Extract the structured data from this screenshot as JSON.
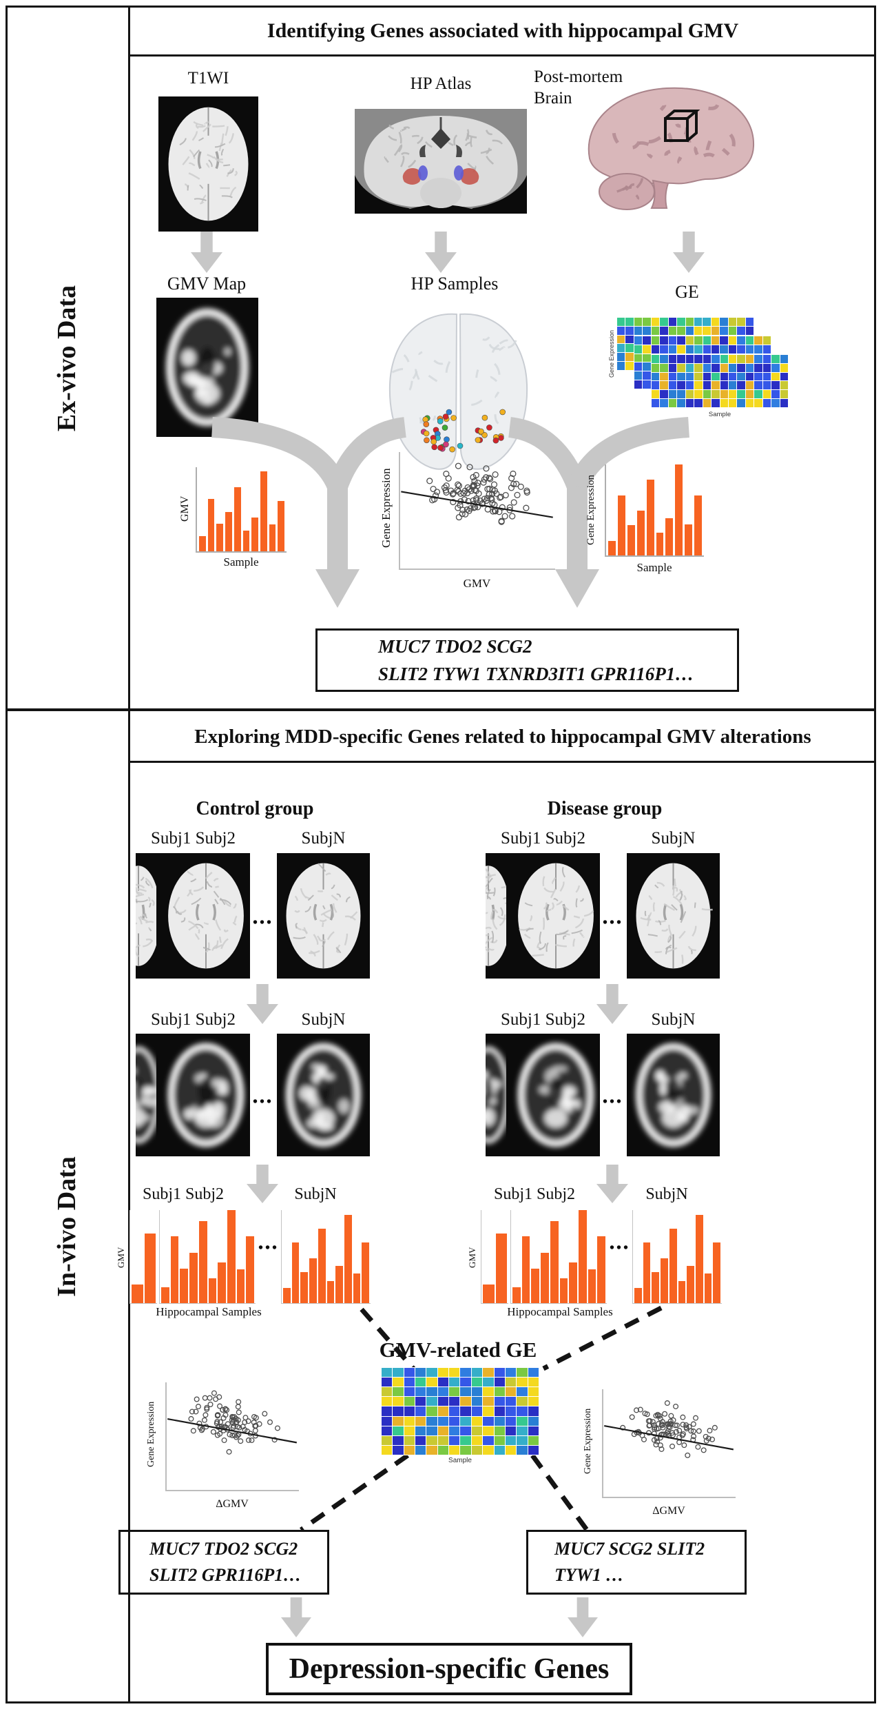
{
  "palette": {
    "bar_orange": "#f76321",
    "arrow_gray": "#c7c7c7",
    "border_black": "#141414",
    "hippocampus_red": "#c4574e",
    "hippocampus_blue": "#5c5cd6",
    "postmortem_pink": "#d9b7ba",
    "heat_colors": [
      "#2a2fc4",
      "#2a2fc4",
      "#3557e8",
      "#3557e8",
      "#2f7de0",
      "#2a7fd4",
      "#35aec9",
      "#36c98f",
      "#7ac943",
      "#c9c932",
      "#e8b22a",
      "#f4d91f",
      "#f4d91f",
      "#2a2fc4"
    ],
    "dot_colors": [
      "#d2232a",
      "#f2b01e",
      "#2a7fd4",
      "#3faa35",
      "#d23a7a",
      "#ef7d21",
      "#29b6c9",
      "#f2b01e",
      "#d2232a"
    ]
  },
  "sidebar": {
    "exvivo_label": "Ex-vivo Data",
    "invivo_label": "In-vivo Data"
  },
  "exvivo": {
    "title": "Identifying Genes associated with hippocampal GMV",
    "t1wi_label": "T1WI",
    "hp_atlas_label": "HP Atlas",
    "postmortem_line1": "Post-mortem",
    "postmortem_line2": "Brain",
    "gmv_map_label": "GMV Map",
    "hp_samples_label": "HP Samples",
    "ge_label": "GE",
    "gene_box_line1": "MUC7 TDO2  SCG2",
    "gene_box_line2": "SLIT2 TYW1 TXNRD3IT1  GPR116P1…"
  },
  "invivo": {
    "title": "Exploring MDD-specific Genes related to hippocampal GMV alterations",
    "control_label": "Control group",
    "disease_label": "Disease group",
    "subj12_label": "Subj1 Subj2",
    "subjn_label": "SubjN",
    "ellipsis": "•••",
    "gmv_axis_label": "GMV",
    "hippocampal_samples_label": "Hippocampal Samples",
    "gmv_related_ge_label": "GMV-related GE",
    "gene_box_left_line1": "MUC7 TDO2  SCG2",
    "gene_box_left_line2": "SLIT2   GPR116P1…",
    "gene_box_right_line1": "MUC7  SCG2   SLIT2",
    "gene_box_right_line2": "TYW1 …",
    "final_label": "Depression-specific Genes"
  },
  "chart_data": [
    {
      "id": "exvivo_gmv_bars",
      "type": "bar",
      "ylabel": "GMV",
      "xlabel": "Sample",
      "values": [
        0.18,
        0.62,
        0.33,
        0.47,
        0.76,
        0.25,
        0.4,
        0.95,
        0.32,
        0.6
      ],
      "bar_color": "#f76321",
      "grid": false,
      "note": "illustrative per-sample hippocampal GMV"
    },
    {
      "id": "exvivo_ge_vs_gmv_scatter",
      "type": "scatter",
      "ylabel": "Gene Expression",
      "xlabel": "GMV",
      "n_points": 110,
      "trend": "negative",
      "marker": "open-circle"
    },
    {
      "id": "exvivo_ge_bars",
      "type": "bar",
      "ylabel": "Gene Expression",
      "xlabel": "Sample",
      "values": [
        0.16,
        0.66,
        0.33,
        0.49,
        0.83,
        0.25,
        0.41,
        1.0,
        0.34,
        0.66
      ],
      "bar_color": "#f76321",
      "grid": false
    },
    {
      "id": "exvivo_ge_heatmap_stack",
      "type": "heatmap",
      "layers": 3,
      "rows": 6,
      "cols": 16,
      "ylabel": "Gene Expression",
      "xlabel": "Sample"
    },
    {
      "id": "invivo_subj1_bars",
      "type": "bar",
      "ylabel": "GMV",
      "xlabel": "Hippocampal Samples",
      "values": [
        0.2,
        0.75
      ],
      "bar_color": "#f76321"
    },
    {
      "id": "invivo_subj2_bars",
      "type": "bar",
      "ylabel": "GMV",
      "xlabel": "Hippocampal Samples",
      "values": [
        0.17,
        0.72,
        0.37,
        0.54,
        0.88,
        0.27,
        0.44,
        1.0,
        0.36,
        0.72
      ],
      "bar_color": "#f76321"
    },
    {
      "id": "invivo_subjN_bars",
      "type": "bar",
      "ylabel": "GMV",
      "xlabel": "Hippocampal Samples",
      "values": [
        0.16,
        0.65,
        0.33,
        0.48,
        0.8,
        0.24,
        0.4,
        0.95,
        0.32,
        0.65
      ],
      "bar_color": "#f76321"
    },
    {
      "id": "gmv_related_ge_heatmap",
      "type": "heatmap",
      "rows": 9,
      "cols": 14,
      "xlabel": "Sample",
      "title": "GMV-related GE"
    },
    {
      "id": "invivo_ge_vs_dgmv_scatter",
      "type": "scatter",
      "ylabel": "Gene Expression",
      "xlabel": "ΔGMV",
      "n_points": 95,
      "trend": "negative",
      "marker": "open-circle",
      "instances": [
        "control",
        "disease"
      ]
    }
  ]
}
